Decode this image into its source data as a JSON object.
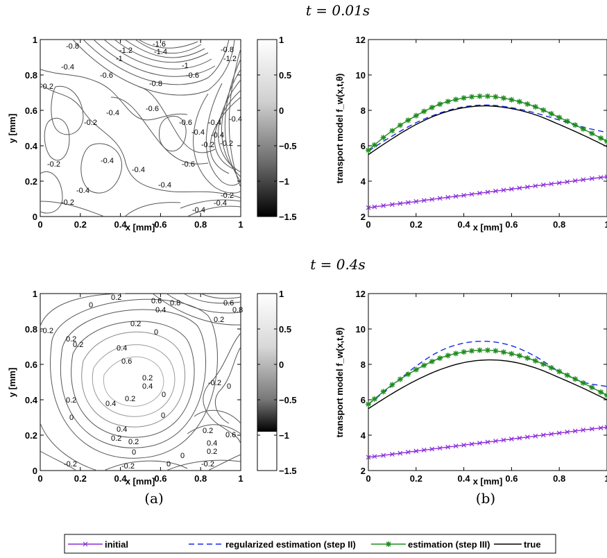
{
  "rows": [
    {
      "time_label": "t = 0.01s"
    },
    {
      "time_label": "t = 0.4s"
    }
  ],
  "subfig_labels": [
    "(a)",
    "(b)"
  ],
  "colors": {
    "initial": "#8B2BD9",
    "regularized": "#1428E6",
    "estimation": "#1E8C1E",
    "true": "#000000"
  },
  "legend": {
    "initial": "initial",
    "regularized": "regularized estimation (step II)",
    "estimation": "estimation (step III)",
    "true": "true"
  },
  "chart_data": [
    {
      "type": "contour",
      "panel": "row1-left",
      "xlabel": "x [mm]",
      "ylabel": "y [mm]",
      "xlim": [
        0,
        1
      ],
      "ylim": [
        0,
        1
      ],
      "xticks": [
        "0",
        "0.2",
        "0.4",
        "0.6",
        "0.8",
        "1"
      ],
      "yticks": [
        "0",
        "0.2",
        "0.4",
        "0.6",
        "0.8",
        "1"
      ],
      "colorbar": {
        "ticks": [
          "1",
          "0.5",
          "0",
          "−0.5",
          "−1",
          "−1.5"
        ],
        "range": [
          -1.5,
          1
        ]
      },
      "contour_labels": [
        "-1.6",
        "-1.4",
        "-1.2",
        "-1",
        "-0.8",
        "-0.8",
        "-0.6",
        "-0.4",
        "-0.2",
        "-0.2",
        "-0.4",
        "-0.6",
        "-0.6",
        "-0.4",
        "-0.2",
        "-0.4",
        "-0.4",
        "-0.2",
        "-0.2",
        "-0.4",
        "-0.6",
        "-0.4",
        "-0.2",
        "-0.4",
        "-0.4",
        "-0.8",
        "-1",
        "-1.2",
        "-0.4",
        "-0.2",
        "-0.4",
        "-0.4",
        "-0.6"
      ]
    },
    {
      "type": "line",
      "panel": "row1-right",
      "xlabel": "x [mm]",
      "ylabel": "transport model f_w(x,t,θ)",
      "xlim": [
        0,
        1
      ],
      "ylim": [
        2,
        12
      ],
      "xticks": [
        "0",
        "0.2",
        "0.4",
        "0.6",
        "0.8",
        "1"
      ],
      "yticks": [
        "2",
        "4",
        "6",
        "8",
        "10",
        "12"
      ],
      "x": [
        0,
        0.1,
        0.2,
        0.3,
        0.4,
        0.5,
        0.6,
        0.7,
        0.8,
        0.9,
        1.0
      ],
      "series": [
        {
          "name": "initial",
          "values": [
            2.5,
            2.68,
            2.85,
            3.03,
            3.2,
            3.38,
            3.55,
            3.73,
            3.9,
            4.08,
            4.25
          ]
        },
        {
          "name": "regularized estimation (step II)",
          "values": [
            5.7,
            6.55,
            7.3,
            7.85,
            8.2,
            8.3,
            8.15,
            7.85,
            7.45,
            7.05,
            6.75
          ]
        },
        {
          "name": "estimation (step III)",
          "values": [
            5.75,
            6.85,
            7.7,
            8.35,
            8.7,
            8.8,
            8.6,
            8.2,
            7.6,
            6.95,
            6.25
          ]
        },
        {
          "name": "true",
          "values": [
            5.5,
            6.4,
            7.2,
            7.8,
            8.15,
            8.25,
            8.1,
            7.75,
            7.2,
            6.6,
            5.95
          ]
        }
      ]
    },
    {
      "type": "contour",
      "panel": "row2-left",
      "xlabel": "x [mm]",
      "ylabel": "y [mm]",
      "xlim": [
        0,
        1
      ],
      "ylim": [
        0,
        1
      ],
      "xticks": [
        "0",
        "0.2",
        "0.4",
        "0.6",
        "0.8",
        "1"
      ],
      "yticks": [
        "0",
        "0.2",
        "0.4",
        "0.6",
        "0.8",
        "1"
      ],
      "colorbar": {
        "ticks": [
          "1",
          "0.5",
          "0",
          "−0.5",
          "−1",
          "−1.5"
        ],
        "range": [
          -1.5,
          1
        ]
      },
      "contour_labels": [
        "0.2",
        "0",
        "-0.2",
        "0.6",
        "0.8",
        "0.4",
        "0.2",
        "0",
        "0.2",
        "0.2",
        "0.4",
        "0.6",
        "0.4",
        "0.2",
        "0",
        "-0.2",
        "0.2",
        "0.4",
        "0.2",
        "0",
        "0.2",
        "0.2",
        "0.4",
        "0",
        "0",
        "0",
        "0.2",
        "0",
        "0.2",
        "0.4",
        "0.6",
        "-0.2",
        "-0.2",
        "0",
        "-0.2",
        "0.2",
        "0.6",
        "0.8"
      ]
    },
    {
      "type": "line",
      "panel": "row2-right",
      "xlabel": "x [mm]",
      "ylabel": "transport model f_w(x,t,θ)",
      "xlim": [
        0,
        1
      ],
      "ylim": [
        2,
        12
      ],
      "xticks": [
        "0",
        "0.2",
        "0.4",
        "0.6",
        "0.8",
        "1"
      ],
      "yticks": [
        "2",
        "4",
        "6",
        "8",
        "10",
        "12"
      ],
      "x": [
        0,
        0.1,
        0.2,
        0.3,
        0.4,
        0.5,
        0.6,
        0.7,
        0.8,
        0.9,
        1.0
      ],
      "series": [
        {
          "name": "initial",
          "values": [
            2.75,
            2.92,
            3.1,
            3.27,
            3.44,
            3.61,
            3.78,
            3.95,
            4.12,
            4.29,
            4.45
          ]
        },
        {
          "name": "regularized estimation (step II)",
          "values": [
            5.75,
            6.8,
            7.9,
            8.75,
            9.2,
            9.3,
            9.05,
            8.45,
            7.6,
            7.0,
            6.75
          ]
        },
        {
          "name": "estimation (step III)",
          "values": [
            5.75,
            6.85,
            7.7,
            8.35,
            8.7,
            8.8,
            8.6,
            8.2,
            7.6,
            6.95,
            6.25
          ]
        },
        {
          "name": "true",
          "values": [
            5.5,
            6.35,
            7.1,
            7.7,
            8.1,
            8.25,
            8.15,
            7.8,
            7.25,
            6.65,
            6.0
          ]
        }
      ]
    }
  ]
}
